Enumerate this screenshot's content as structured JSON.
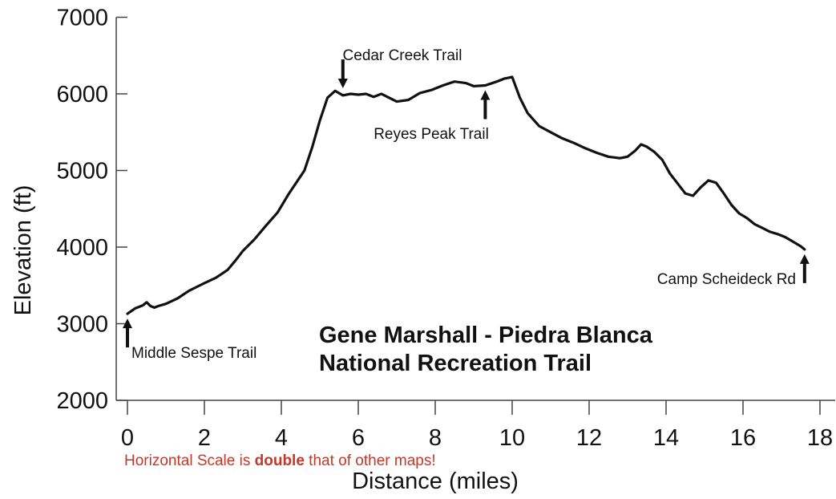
{
  "chart_data": {
    "type": "line",
    "title_lines": [
      "Gene Marshall - Piedra Blanca",
      "National Recreation Trail"
    ],
    "xlabel": "Distance (miles)",
    "ylabel": "Elevation (ft)",
    "xlim": [
      0,
      18
    ],
    "ylim": [
      2000,
      7000
    ],
    "x_ticks": [
      0,
      2,
      4,
      6,
      8,
      10,
      12,
      14,
      16,
      18
    ],
    "y_ticks": [
      2000,
      3000,
      4000,
      5000,
      6000,
      7000
    ],
    "grid": false,
    "series": [
      {
        "x": [
          0,
          0.2,
          0.4,
          0.5,
          0.6,
          0.7,
          0.8,
          1.0,
          1.3,
          1.6,
          2.0,
          2.3,
          2.6,
          2.8,
          3.0,
          3.3,
          3.6,
          3.9,
          4.2,
          4.4,
          4.6,
          4.8,
          5.0,
          5.2,
          5.4,
          5.6,
          5.8,
          6.0,
          6.2,
          6.4,
          6.6,
          6.8,
          7.0,
          7.3,
          7.6,
          7.9,
          8.2,
          8.5,
          8.8,
          9.0,
          9.3,
          9.6,
          9.8,
          10.0,
          10.2,
          10.4,
          10.7,
          11.0,
          11.3,
          11.6,
          11.9,
          12.2,
          12.5,
          12.8,
          13.0,
          13.2,
          13.35,
          13.5,
          13.7,
          13.9,
          14.1,
          14.3,
          14.5,
          14.7,
          14.9,
          15.1,
          15.3,
          15.5,
          15.7,
          15.9,
          16.1,
          16.3,
          16.5,
          16.7,
          16.9,
          17.1,
          17.3,
          17.5,
          17.6
        ],
        "y": [
          3130,
          3200,
          3240,
          3280,
          3230,
          3210,
          3230,
          3260,
          3330,
          3430,
          3530,
          3600,
          3700,
          3820,
          3950,
          4100,
          4280,
          4450,
          4700,
          4850,
          5000,
          5300,
          5650,
          5950,
          6040,
          5980,
          6000,
          5990,
          6000,
          5960,
          6000,
          5950,
          5900,
          5920,
          6010,
          6050,
          6110,
          6160,
          6140,
          6100,
          6110,
          6160,
          6200,
          6220,
          5950,
          5750,
          5580,
          5500,
          5420,
          5360,
          5290,
          5230,
          5180,
          5160,
          5180,
          5260,
          5340,
          5310,
          5240,
          5140,
          4960,
          4830,
          4700,
          4670,
          4780,
          4870,
          4840,
          4700,
          4550,
          4440,
          4380,
          4300,
          4250,
          4200,
          4170,
          4130,
          4070,
          4010,
          3970
        ]
      }
    ],
    "annotations": [
      {
        "text": "Middle Sespe Trail",
        "x": 0,
        "y": 3130,
        "arrow": "up"
      },
      {
        "text": "Cedar Creek Trail",
        "x": 5.6,
        "y": 6010,
        "arrow": "down"
      },
      {
        "text": "Reyes Peak Trail",
        "x": 9.3,
        "y": 6110,
        "arrow": "up"
      },
      {
        "text": "Camp Scheideck Rd",
        "x": 17.6,
        "y": 3970,
        "arrow": "up"
      }
    ],
    "note": {
      "before": "Horizontal Scale is ",
      "bold": "double",
      "after": " that of other maps!"
    },
    "colors": {
      "line": "#111111",
      "note": "#c0392b"
    }
  }
}
